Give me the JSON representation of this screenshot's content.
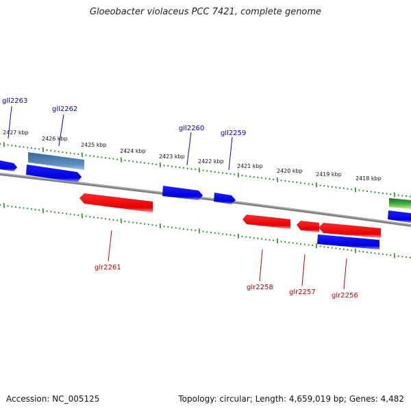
{
  "title": "Gloeobacter violaceus PCC 7421, complete genome",
  "footer": {
    "accession": "Accession: NC_005125",
    "summary": "Topology: circular; Length: 4,659,019 bp; Genes: 4,482"
  },
  "colors": {
    "forward_gene": "#0000ee",
    "reverse_gene": "#ee0000",
    "selected_gene": "#4a7fb0",
    "rna_gene": "#33aa33",
    "axis": "#888888",
    "tick": "#1a8a1a",
    "forward_label": "#0000bb",
    "reverse_label": "#bb0000"
  },
  "kbp_labels": [
    "2427 kbp",
    "2426 kbp",
    "2425 kbp",
    "2424 kbp",
    "2423 kbp",
    "2422 kbp",
    "2421 kbp",
    "2420 kbp",
    "2419 kbp",
    "2418 kbp"
  ],
  "genes": {
    "forward": [
      "gll2263",
      "gll2262",
      "gll2260",
      "gll2259"
    ],
    "reverse": [
      "glr2261",
      "glr2258",
      "glr2257",
      "glr2256"
    ]
  }
}
